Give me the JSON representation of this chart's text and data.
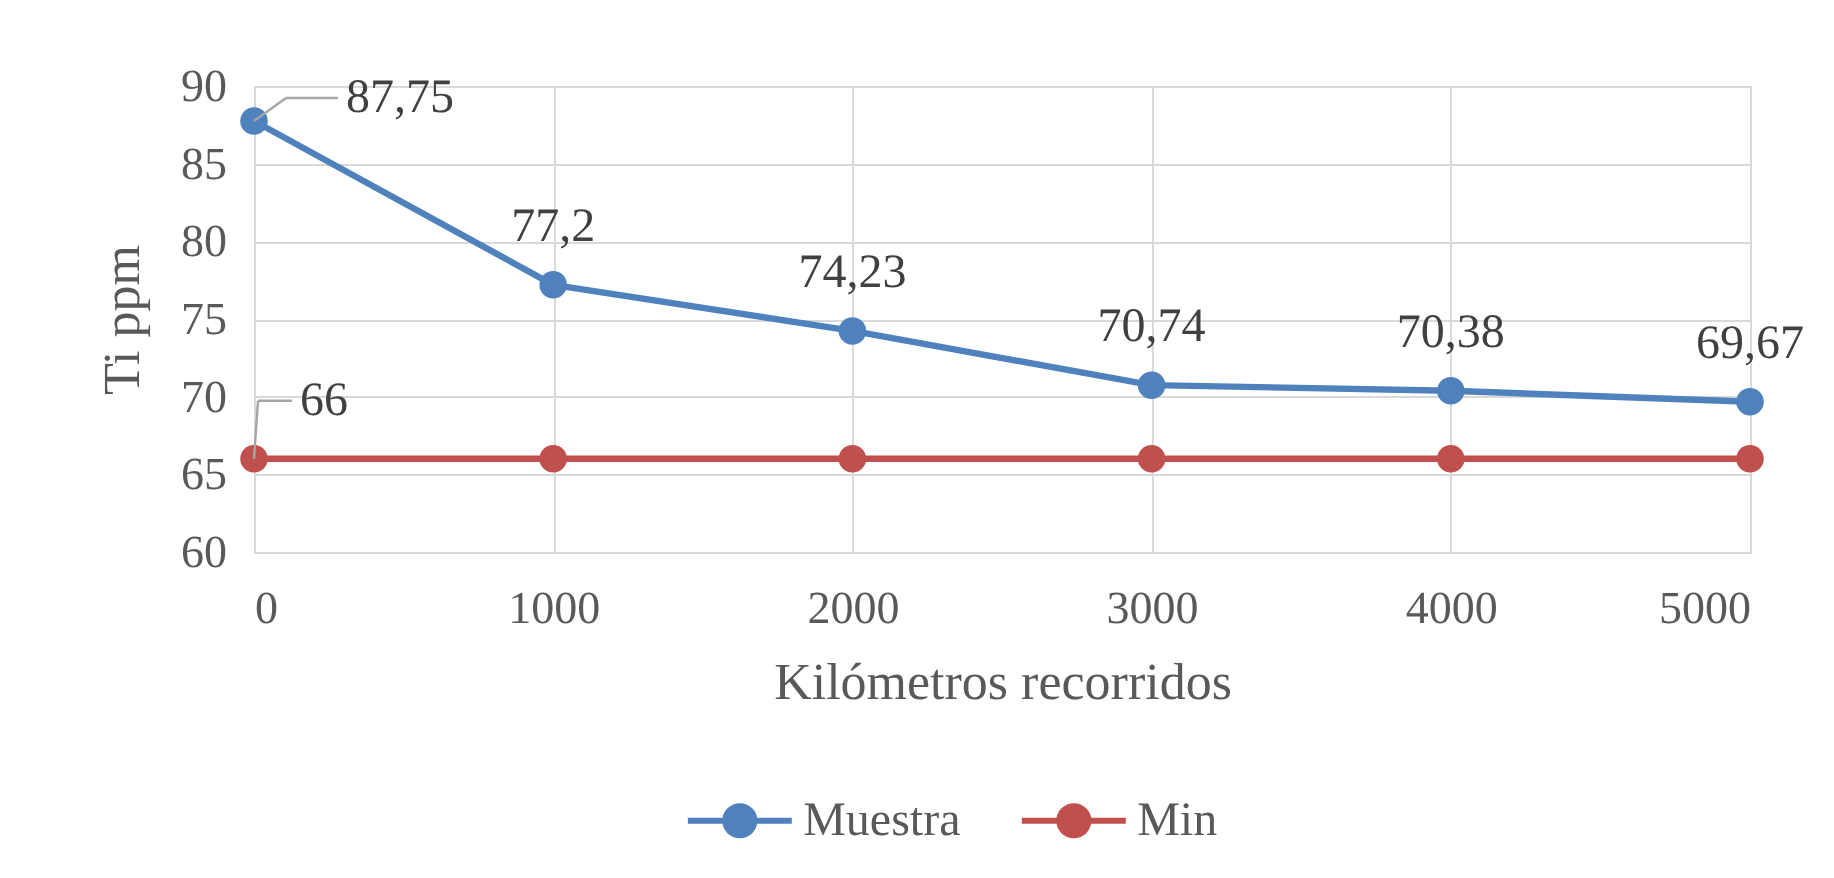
{
  "chart_data": {
    "type": "line",
    "xlabel": "Kilómetros recorridos",
    "ylabel": "Ti ppm",
    "x": [
      0,
      1000,
      2000,
      3000,
      4000,
      5000
    ],
    "xlim": [
      0,
      5000
    ],
    "xticks": [
      0,
      1000,
      2000,
      3000,
      4000,
      5000
    ],
    "ylim": [
      60,
      90
    ],
    "yticks": [
      60,
      65,
      70,
      75,
      80,
      85,
      90
    ],
    "grid": true,
    "legend": "bottom",
    "marker": "circle",
    "line_style": "solid",
    "series": [
      {
        "name": "Muestra",
        "color": "#4f81bd",
        "values": [
          87.75,
          77.2,
          74.23,
          70.74,
          70.38,
          69.67
        ],
        "value_labels": [
          "87,75",
          "77,2",
          "74,23",
          "70,74",
          "70,38",
          "69,67"
        ]
      },
      {
        "name": "Min",
        "color": "#c0504d",
        "values": [
          66,
          66,
          66,
          66,
          66,
          66
        ],
        "value_labels": [
          "66",
          null,
          null,
          null,
          null,
          null
        ]
      }
    ]
  }
}
